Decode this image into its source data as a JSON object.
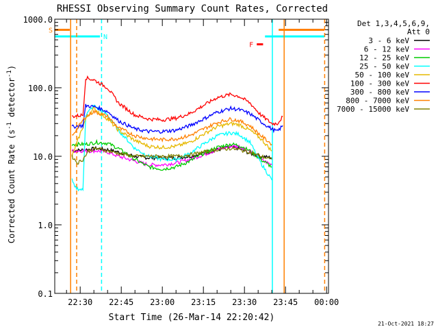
{
  "chart_data": {
    "type": "line",
    "title": "RHESSI Observing Summary Count Rates, Corrected",
    "xlabel": "Start Time (26-Mar-14 22:20:42)",
    "ylabel_main": "Corrected Count Rate (s",
    "ylabel_sup": "-1",
    "ylabel_mid": " detector",
    "ylabel_sup2": "-1",
    "ylabel_end": ")",
    "y_scale": "log",
    "ylim": [
      0.1,
      1000
    ],
    "y_ticks": [
      {
        "v": 0.1,
        "label": "0.1"
      },
      {
        "v": 1,
        "label": "1.0"
      },
      {
        "v": 10,
        "label": "10.0"
      },
      {
        "v": 100,
        "label": "100.0"
      },
      {
        "v": 1000,
        "label": "1000.0"
      }
    ],
    "xlim_minutes": [
      20.7,
      120.7
    ],
    "x_ticks": [
      {
        "m": 30,
        "label": "22:30"
      },
      {
        "m": 45,
        "label": "22:45"
      },
      {
        "m": 60,
        "label": "23:00"
      },
      {
        "m": 75,
        "label": "23:15"
      },
      {
        "m": 90,
        "label": "23:30"
      },
      {
        "m": 105,
        "label": "23:45"
      },
      {
        "m": 120,
        "label": "00:00"
      }
    ],
    "legend_header": [
      "Det 1,3,4,5,6,9,",
      "Att 0"
    ],
    "legend_placement": "top-right",
    "footer": "21-Oct-2021 18:27",
    "series": [
      {
        "name": "3 - 6 keV",
        "color": "#000000",
        "points": [
          [
            27,
            12
          ],
          [
            32,
            12.5
          ],
          [
            36,
            13
          ],
          [
            40,
            12.5
          ],
          [
            44,
            11.5
          ],
          [
            50,
            10
          ],
          [
            55,
            9.5
          ],
          [
            60,
            9.5
          ],
          [
            65,
            9.5
          ],
          [
            70,
            10
          ],
          [
            75,
            11
          ],
          [
            80,
            12.5
          ],
          [
            85,
            13.5
          ],
          [
            88,
            13
          ],
          [
            92,
            11
          ],
          [
            96,
            10
          ],
          [
            100,
            9.5
          ]
        ]
      },
      {
        "name": "6 - 12 keV",
        "color": "#ff00ff",
        "points": [
          [
            27,
            12
          ],
          [
            32,
            12
          ],
          [
            36,
            12
          ],
          [
            40,
            11.5
          ],
          [
            44,
            10
          ],
          [
            50,
            8.5
          ],
          [
            55,
            7.5
          ],
          [
            60,
            7.5
          ],
          [
            65,
            8
          ],
          [
            70,
            9
          ],
          [
            75,
            10.5
          ],
          [
            80,
            12.5
          ],
          [
            85,
            14
          ],
          [
            88,
            14
          ],
          [
            92,
            12
          ],
          [
            96,
            9
          ],
          [
            100,
            7.5
          ]
        ]
      },
      {
        "name": "12 - 25 keV",
        "color": "#00cc00",
        "points": [
          [
            27,
            15
          ],
          [
            32,
            15
          ],
          [
            36,
            16
          ],
          [
            40,
            15.5
          ],
          [
            44,
            13
          ],
          [
            50,
            9
          ],
          [
            55,
            7
          ],
          [
            60,
            6.5
          ],
          [
            65,
            7
          ],
          [
            70,
            8.5
          ],
          [
            75,
            11
          ],
          [
            80,
            13.5
          ],
          [
            85,
            15
          ],
          [
            88,
            14.5
          ],
          [
            92,
            12
          ],
          [
            96,
            9
          ],
          [
            100,
            7
          ]
        ]
      },
      {
        "name": "25 - 50 keV",
        "color": "#00ffff",
        "points": [
          [
            27,
            4.5
          ],
          [
            28,
            3.5
          ],
          [
            31,
            3.2
          ],
          [
            32,
            40
          ],
          [
            35,
            55
          ],
          [
            40,
            40
          ],
          [
            44,
            24
          ],
          [
            50,
            13
          ],
          [
            55,
            10
          ],
          [
            60,
            9
          ],
          [
            65,
            9
          ],
          [
            70,
            11
          ],
          [
            75,
            15
          ],
          [
            80,
            20
          ],
          [
            85,
            22
          ],
          [
            88,
            21
          ],
          [
            92,
            16
          ],
          [
            96,
            8
          ],
          [
            100,
            4.5
          ]
        ]
      },
      {
        "name": "50 - 100 keV",
        "color": "#e6b800",
        "points": [
          [
            27,
            10
          ],
          [
            32,
            35
          ],
          [
            35,
            50
          ],
          [
            40,
            35
          ],
          [
            44,
            24
          ],
          [
            50,
            17
          ],
          [
            55,
            14
          ],
          [
            60,
            13.5
          ],
          [
            65,
            14
          ],
          [
            70,
            16
          ],
          [
            75,
            21
          ],
          [
            80,
            27
          ],
          [
            85,
            30
          ],
          [
            88,
            29
          ],
          [
            92,
            24
          ],
          [
            96,
            18
          ],
          [
            100,
            12
          ]
        ]
      },
      {
        "name": "100 - 300 keV",
        "color": "#ff0000",
        "points": [
          [
            27,
            38
          ],
          [
            31,
            40
          ],
          [
            32,
            140
          ],
          [
            35,
            130
          ],
          [
            40,
            100
          ],
          [
            44,
            60
          ],
          [
            50,
            40
          ],
          [
            55,
            35
          ],
          [
            60,
            34
          ],
          [
            65,
            36
          ],
          [
            70,
            42
          ],
          [
            75,
            55
          ],
          [
            80,
            72
          ],
          [
            85,
            80
          ],
          [
            88,
            75
          ],
          [
            92,
            60
          ],
          [
            96,
            40
          ],
          [
            100,
            30
          ],
          [
            102,
            30
          ],
          [
            104,
            38
          ]
        ]
      },
      {
        "name": "300 - 800 keV",
        "color": "#0000ff",
        "points": [
          [
            27,
            27
          ],
          [
            31,
            28
          ],
          [
            32,
            55
          ],
          [
            36,
            52
          ],
          [
            40,
            45
          ],
          [
            44,
            33
          ],
          [
            50,
            25
          ],
          [
            55,
            23
          ],
          [
            60,
            23
          ],
          [
            65,
            24
          ],
          [
            70,
            28
          ],
          [
            75,
            35
          ],
          [
            80,
            44
          ],
          [
            85,
            50
          ],
          [
            88,
            48
          ],
          [
            92,
            42
          ],
          [
            96,
            32
          ],
          [
            100,
            25
          ],
          [
            102,
            23
          ],
          [
            104,
            28
          ]
        ]
      },
      {
        "name": "800 - 7000 keV",
        "color": "#ff8000",
        "points": [
          [
            27,
            20
          ],
          [
            32,
            38
          ],
          [
            35,
            45
          ],
          [
            40,
            38
          ],
          [
            44,
            26
          ],
          [
            50,
            20
          ],
          [
            55,
            18
          ],
          [
            60,
            17.5
          ],
          [
            65,
            18
          ],
          [
            70,
            20
          ],
          [
            75,
            25
          ],
          [
            80,
            31
          ],
          [
            85,
            35
          ],
          [
            88,
            33
          ],
          [
            92,
            28
          ],
          [
            96,
            20
          ],
          [
            100,
            15
          ]
        ]
      },
      {
        "name": "7000 - 15000 keV",
        "color": "#808000",
        "points": [
          [
            27,
            10
          ],
          [
            29,
            8
          ],
          [
            31,
            9
          ],
          [
            33,
            12
          ],
          [
            36,
            13
          ],
          [
            40,
            12
          ],
          [
            44,
            11
          ],
          [
            50,
            10
          ],
          [
            55,
            10
          ],
          [
            60,
            10
          ],
          [
            65,
            10
          ],
          [
            70,
            10.5
          ],
          [
            75,
            11.5
          ],
          [
            80,
            12.5
          ],
          [
            85,
            13
          ],
          [
            88,
            12.5
          ],
          [
            92,
            11.5
          ],
          [
            96,
            10
          ],
          [
            100,
            9
          ]
        ]
      }
    ],
    "flag_bars": [
      {
        "label": "S",
        "color": "#ff8000",
        "segments": [
          [
            20.7,
            26.2
          ],
          [
            102.5,
            119.2
          ]
        ],
        "level": 700
      },
      {
        "label": "N",
        "color": "#00ffff",
        "segments": [
          [
            20.7,
            37.2
          ],
          [
            97.5,
            119.2
          ]
        ],
        "level": 560
      },
      {
        "label": "F",
        "color": "#ff0000",
        "segments": [
          [
            94.5,
            96.8
          ]
        ],
        "level": 430
      }
    ],
    "vlines": [
      {
        "m": 26.5,
        "color": "#ff8000",
        "style": "solid"
      },
      {
        "m": 28.7,
        "color": "#ff8000",
        "style": "dashed"
      },
      {
        "m": 37.8,
        "color": "#00ffff",
        "style": "dashed"
      },
      {
        "m": 100.2,
        "color": "#00ffff",
        "style": "solid"
      },
      {
        "m": 104.5,
        "color": "#ff8000",
        "style": "solid"
      },
      {
        "m": 119.3,
        "color": "#ff8000",
        "style": "dashed"
      }
    ]
  }
}
